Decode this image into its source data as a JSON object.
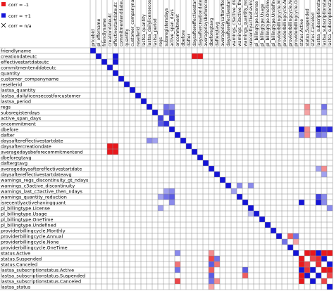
{
  "legend": {
    "items": [
      {
        "label": "corr = -1",
        "color": "#e8181c"
      },
      {
        "label": "corr = +1",
        "color": "#1414d8"
      },
      {
        "label": "corr = n/a",
        "symbol": "cross"
      }
    ]
  },
  "chart_data": {
    "type": "heatmap",
    "value_range": [
      -1,
      1
    ],
    "colors": {
      "negative": "#e8181c",
      "positive": "#1414d8",
      "zero": "#ffffff",
      "grid": "#8a8a8a"
    },
    "column_labels": [
      "pricebid",
      "pl_offername",
      "friendlyname",
      "creationdateutc",
      "effectivestartdateutc",
      "commitmentenddateutc",
      "quantity",
      "customer_companyname",
      "resellerid",
      "lastsa_quantity",
      "lastsa_dailylicensecostforcustomer",
      "lastsa_period",
      "regs",
      "subsregistersdays",
      "active_span_days",
      "oncommitment",
      "dbefore",
      "dafter",
      "daysaftereffectivestartdate",
      "daysaftercreationdate",
      "averagedaysbeforecommitmentend",
      "dbeforegtavg",
      "dafterqtavg",
      "averagedaysaftereffectivestartdate",
      "daysaftereffectivestartdateavg",
      "warnings_c3active_discontinuity",
      "warnings_c3active_then_ndays",
      "warnings_quantity_reduction",
      "isrecentlyactivehavingquant",
      "pl_billingtype.License",
      "pl_billingtype.Usage",
      "pl_billingtype.OneTime",
      "pl_billingtype.Undefined",
      "providerbillingcycle.Monthly",
      "providerbillingcycle.Annual",
      "providerbillingcycle.None",
      "providerbillingcycle.OneTime",
      "status.Active",
      "status.Suspended",
      "status.Canceled",
      "lastsa_subscriptionstatus.Active",
      "lastsa_subscriptionstatus.Suspended",
      "lastsa_subscriptionstatus.Canceled"
    ],
    "row_labels": [
      "friendlyname",
      "creationdateutc",
      "effectivestartdateutc",
      "commitmentenddateutc",
      "quantity",
      "customer_companyname",
      "resellerid",
      "lastsa_quantity",
      "lastsa_dailylicensecostforcustomer",
      "lastsa_period",
      "regs",
      "subsregisterdays",
      "active_span_days",
      "oncommitment",
      "dbefore",
      "dafter",
      "daysaftereffectivestartdate",
      "daysaftercreationdate",
      "averagedaysbeforecommitmentend",
      "dbeforegtavg",
      "daftergtavg",
      "averagedaysaftereffectivestartdate",
      "daysaftereffectivestartdateavg",
      "warnings_regs_discontinuity_gt_ndays",
      "warnings_c3active_discontinuity",
      "warnings_last_c3active_then_ndays",
      "warnings_quantity_reduction",
      "isrecentlyactivehavingquant",
      "pl_billingtype.License",
      "pl_billingtype.Usage",
      "pl_billingtype.OneTime",
      "pl_billingtype.Undefined",
      "providerbillingcycle.Monthly",
      "providerbillingcycle.Annual",
      "providerbillingcycle.None",
      "providerbillingcycle.OneTime",
      "status.Active",
      "status.Suspended",
      "status.Canceled",
      "lastsa_subscriptionstatus.Active",
      "lastsa_subscriptionstatus.Suspended",
      "lastsa_subscriptionstatus.Canceled",
      "lastsa_status"
    ],
    "cells": [
      {
        "row": 1,
        "col": 18,
        "value": -1
      },
      {
        "row": 1,
        "col": 19,
        "value": -1
      },
      {
        "row": 1,
        "col": 4,
        "value": 1
      },
      {
        "row": 2,
        "col": 4,
        "value": 1
      },
      {
        "row": 17,
        "col": 3,
        "value": -1
      },
      {
        "row": 17,
        "col": 4,
        "value": -1
      },
      {
        "row": 18,
        "col": 3,
        "value": -1
      },
      {
        "row": 18,
        "col": 4,
        "value": -1
      },
      {
        "row": 11,
        "col": 13,
        "value": 0.7
      },
      {
        "row": 11,
        "col": 14,
        "value": 0.8
      },
      {
        "row": 12,
        "col": 12,
        "value": 0.8
      },
      {
        "row": 12,
        "col": 14,
        "value": 0.9
      },
      {
        "row": 13,
        "col": 12,
        "value": 0.7
      },
      {
        "row": 13,
        "col": 13,
        "value": 0.9
      },
      {
        "row": 10,
        "col": 13,
        "value": 0.6
      },
      {
        "row": 10,
        "col": 14,
        "value": 0.5
      },
      {
        "row": 14,
        "col": 37,
        "value": 1
      },
      {
        "row": 14,
        "col": 40,
        "value": 1
      },
      {
        "row": 14,
        "col": 41,
        "value": 0.8
      },
      {
        "row": 14,
        "col": 42,
        "value": 0.9
      },
      {
        "row": 14,
        "col": 38,
        "value": -0.5
      },
      {
        "row": 15,
        "col": 40,
        "value": 0.6
      },
      {
        "row": 15,
        "col": 37,
        "value": 0.5
      },
      {
        "row": 21,
        "col": 40,
        "value": 0.4
      },
      {
        "row": 21,
        "col": 41,
        "value": -0.5
      },
      {
        "row": 22,
        "col": 41,
        "value": 0.4
      },
      {
        "row": 24,
        "col": 26,
        "value": 0.5
      },
      {
        "row": 24,
        "col": 28,
        "value": 0.5
      },
      {
        "row": 25,
        "col": 13,
        "value": 0.4
      },
      {
        "row": 25,
        "col": 14,
        "value": 0.5
      },
      {
        "row": 25,
        "col": 25,
        "value": 0.4
      },
      {
        "row": 26,
        "col": 13,
        "value": 0.6
      },
      {
        "row": 26,
        "col": 14,
        "value": 0.7
      },
      {
        "row": 26,
        "col": 12,
        "value": 0.4
      },
      {
        "row": 26,
        "col": 40,
        "value": 0.8
      },
      {
        "row": 26,
        "col": 41,
        "value": 0.5
      },
      {
        "row": 27,
        "col": 14,
        "value": 0.5
      },
      {
        "row": 27,
        "col": 37,
        "value": 1
      },
      {
        "row": 27,
        "col": 40,
        "value": 1
      },
      {
        "row": 27,
        "col": 41,
        "value": 0.5
      },
      {
        "row": 28,
        "col": 12,
        "value": 0.4
      },
      {
        "row": 28,
        "col": 42,
        "value": 0.5
      },
      {
        "row": 29,
        "col": 28,
        "value": 0.3
      },
      {
        "row": 33,
        "col": 35,
        "value": -0.7
      },
      {
        "row": 33,
        "col": 36,
        "value": 0.6
      },
      {
        "row": 34,
        "col": 34,
        "value": 0.6
      },
      {
        "row": 34,
        "col": 36,
        "value": -0.4
      },
      {
        "row": 36,
        "col": 38,
        "value": -1
      },
      {
        "row": 36,
        "col": 39,
        "value": -1
      },
      {
        "row": 36,
        "col": 40,
        "value": 1
      },
      {
        "row": 36,
        "col": 41,
        "value": -1
      },
      {
        "row": 36,
        "col": 42,
        "value": -1
      },
      {
        "row": 37,
        "col": 37,
        "value": -1
      },
      {
        "row": 37,
        "col": 39,
        "value": -0.8
      },
      {
        "row": 37,
        "col": 41,
        "value": 1
      },
      {
        "row": 37,
        "col": 40,
        "value": -0.9
      },
      {
        "row": 38,
        "col": 37,
        "value": -1
      },
      {
        "row": 38,
        "col": 38,
        "value": -0.8
      },
      {
        "row": 38,
        "col": 42,
        "value": 1
      },
      {
        "row": 38,
        "col": 40,
        "value": -0.9
      },
      {
        "row": 39,
        "col": 37,
        "value": 1
      },
      {
        "row": 39,
        "col": 38,
        "value": -0.9
      },
      {
        "row": 39,
        "col": 41,
        "value": -1
      },
      {
        "row": 39,
        "col": 42,
        "value": -1
      },
      {
        "row": 40,
        "col": 38,
        "value": 1
      },
      {
        "row": 40,
        "col": 37,
        "value": -1
      },
      {
        "row": 40,
        "col": 42,
        "value": -0.8
      },
      {
        "row": 41,
        "col": 39,
        "value": 1
      },
      {
        "row": 41,
        "col": 37,
        "value": -1
      },
      {
        "row": 41,
        "col": 41,
        "value": -0.8
      },
      {
        "row": 36,
        "col": 15,
        "value": 0.5
      },
      {
        "row": 36,
        "col": 21,
        "value": -0.5
      },
      {
        "row": 37,
        "col": 21,
        "value": -0.8
      },
      {
        "row": 37,
        "col": 22,
        "value": 0.6
      },
      {
        "row": 38,
        "col": 15,
        "value": -0.6
      },
      {
        "row": 38,
        "col": 21,
        "value": 0.7
      },
      {
        "row": 38,
        "col": 22,
        "value": -0.6
      },
      {
        "row": 39,
        "col": 15,
        "value": 0.6
      },
      {
        "row": 39,
        "col": 21,
        "value": -0.7
      },
      {
        "row": 39,
        "col": 27,
        "value": 0.7
      },
      {
        "row": 40,
        "col": 21,
        "value": 0.7
      },
      {
        "row": 40,
        "col": 27,
        "value": -0.7
      },
      {
        "row": 41,
        "col": 15,
        "value": -0.8
      },
      {
        "row": 41,
        "col": 21,
        "value": 0.6
      },
      {
        "row": 41,
        "col": 22,
        "value": -0.5
      },
      {
        "row": 42,
        "col": 21,
        "value": -0.4
      },
      {
        "row": 16,
        "col": 10,
        "value": 0.5
      },
      {
        "row": 16,
        "col": 11,
        "value": 0.4
      },
      {
        "row": 10,
        "col": 38,
        "value": -0.5
      },
      {
        "row": 10,
        "col": 41,
        "value": 0.6
      },
      {
        "row": 11,
        "col": 38,
        "value": -0.4
      },
      {
        "row": 11,
        "col": 41,
        "value": 0.4
      },
      {
        "row": 15,
        "col": 38,
        "value": -0.5
      },
      {
        "row": 15,
        "col": 41,
        "value": 0.5
      }
    ]
  }
}
